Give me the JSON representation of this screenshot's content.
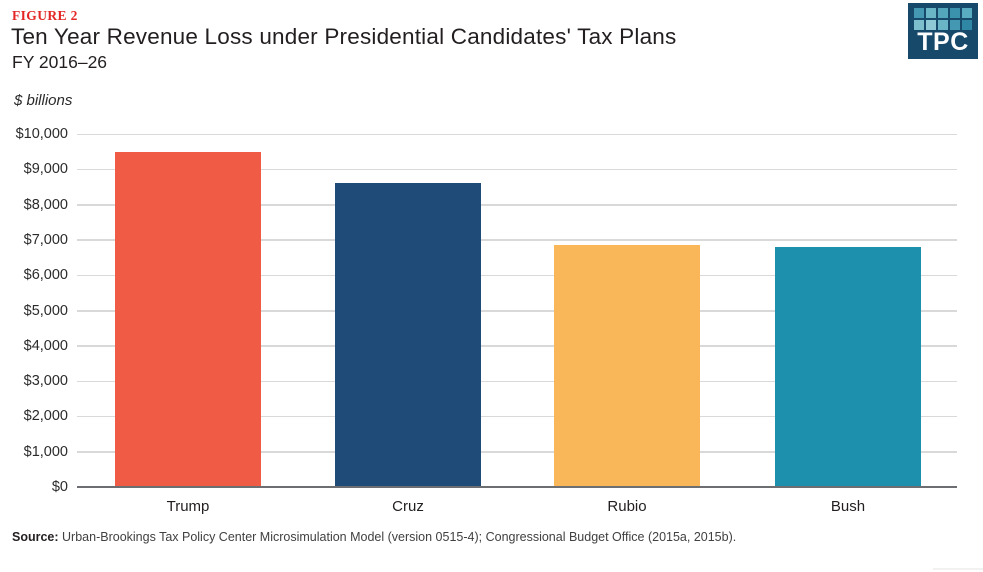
{
  "header": {
    "figure_label": "FIGURE 2",
    "title": "Ten Year Revenue Loss under Presidential Candidates' Tax Plans",
    "subtitle": "FY 2016–26"
  },
  "logo": {
    "text": "TPC",
    "bg_color": "#17496b",
    "square_colors": [
      "#4498b1",
      "#6ab5c6",
      "#54a7bb",
      "#3a92ad",
      "#5aacc0",
      "#7dbfcd",
      "#90c9d6",
      "#6ab5c6",
      "#4498b1",
      "#2f87a5"
    ]
  },
  "chart_data": {
    "type": "bar",
    "title": "Ten Year Revenue Loss under Presidential Candidates' Tax Plans",
    "subtitle": "FY 2016–26",
    "unit_label": "$ billions",
    "categories": [
      "Trump",
      "Cruz",
      "Rubio",
      "Bush"
    ],
    "values": [
      9500,
      8600,
      6850,
      6800
    ],
    "bar_colors": [
      "#ef5b45",
      "#1e4b78",
      "#f9b75a",
      "#1c90ac"
    ],
    "ylim": [
      0,
      10000
    ],
    "ytick_step": 1000,
    "ytick_labels": [
      "$0",
      "$1,000",
      "$2,000",
      "$3,000",
      "$4,000",
      "$5,000",
      "$6,000",
      "$7,000",
      "$8,000",
      "$9,000",
      "$10,000"
    ],
    "grid": true,
    "legend": false,
    "xlabel": "",
    "ylabel": "$ billions",
    "grid_color": "#d9d9d9",
    "axis_color": "#6d6e71"
  },
  "source": {
    "label": "Source:",
    "text": "Urban-Brookings Tax Policy Center Microsimulation Model (version 0515-4); Congressional Budget Office (2015a, 2015b)."
  }
}
